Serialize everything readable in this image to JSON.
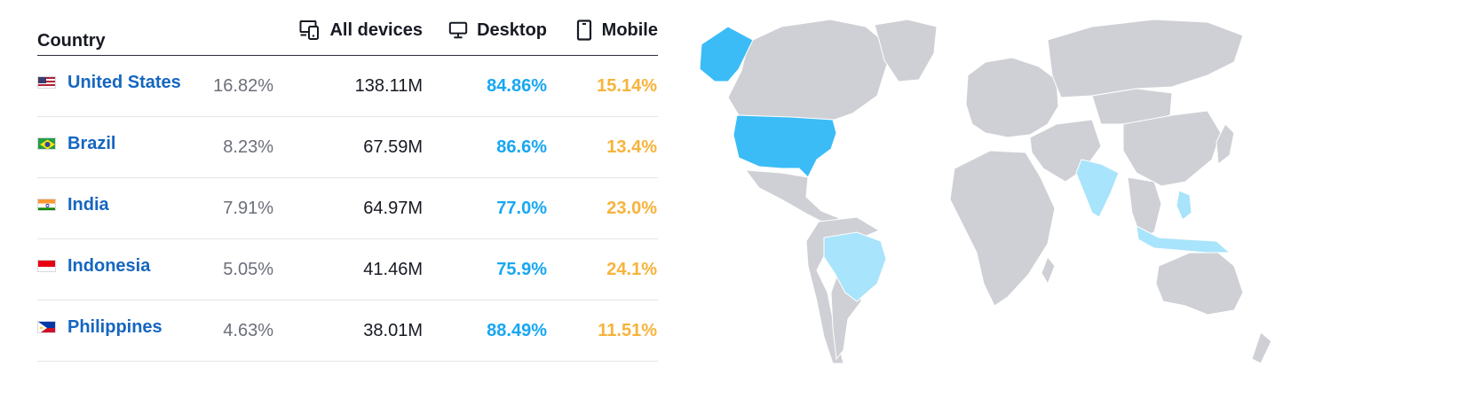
{
  "header": {
    "country": "Country",
    "all_devices": "All devices",
    "desktop": "Desktop",
    "mobile": "Mobile"
  },
  "rows": [
    {
      "country": "United States",
      "flag": "us-flag-icon",
      "share": "16.82%",
      "visits": "138.11M",
      "desktop": "84.86%",
      "mobile": "15.14%"
    },
    {
      "country": "Brazil",
      "flag": "brazil-flag-icon",
      "share": "8.23%",
      "visits": "67.59M",
      "desktop": "86.6%",
      "mobile": "13.4%"
    },
    {
      "country": "India",
      "flag": "india-flag-icon",
      "share": "7.91%",
      "visits": "64.97M",
      "desktop": "77.0%",
      "mobile": "23.0%"
    },
    {
      "country": "Indonesia",
      "flag": "indonesia-flag-icon",
      "share": "5.05%",
      "visits": "41.46M",
      "desktop": "75.9%",
      "mobile": "24.1%"
    },
    {
      "country": "Philippines",
      "flag": "philippines-flag-icon",
      "share": "4.63%",
      "visits": "38.01M",
      "desktop": "88.49%",
      "mobile": "11.51%"
    }
  ],
  "colors": {
    "link": "#1566c0",
    "desktop": "#17a7f2",
    "mobile": "#f7b33b",
    "map_base": "#cfd0d5",
    "map_high": "#3bbcf7",
    "map_mid": "#a8e4fb"
  },
  "map": {
    "highlighted_strong": [
      "United States"
    ],
    "highlighted_light": [
      "Brazil",
      "India",
      "Indonesia",
      "Philippines"
    ]
  }
}
